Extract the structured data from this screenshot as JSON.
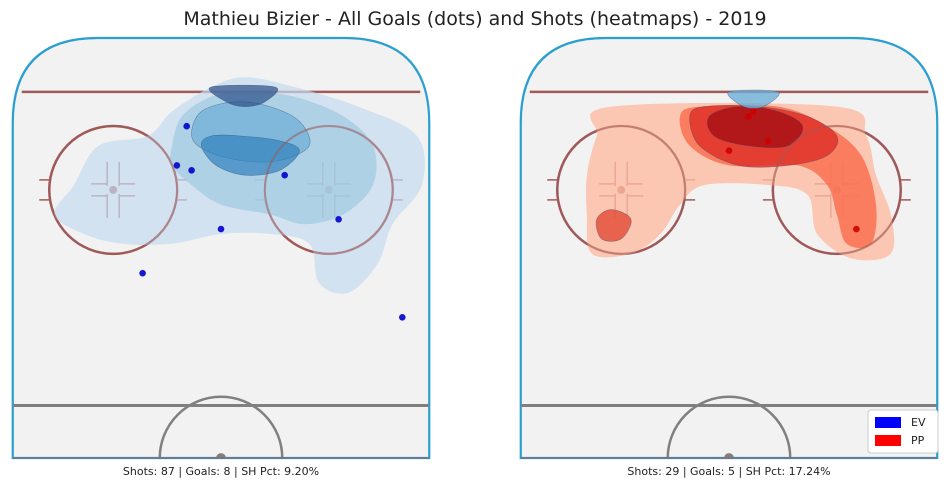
{
  "title": "Mathieu Bizier - All Goals (dots) and Shots (heatmaps) - 2019",
  "colors": {
    "ev": "#0000ff",
    "pp": "#ff0000",
    "rink_border": "#2a9fd0",
    "ice": "#f2f2f2",
    "red_line": "#a05a5a",
    "grey_line": "#808080"
  },
  "legend": {
    "placement": "lower-right",
    "items": [
      {
        "label": "EV",
        "color": "#0000ff"
      },
      {
        "label": "PP",
        "color": "#ff0000"
      }
    ]
  },
  "chart_data": [
    {
      "type": "scatter",
      "strength": "EV",
      "caption": "Shots: 87 | Goals: 8 | SH Pct: 9.20%",
      "goals": [
        {
          "x": -7,
          "y": 82
        },
        {
          "x": -9,
          "y": 74
        },
        {
          "x": -6,
          "y": 73
        },
        {
          "x": 13,
          "y": 72
        },
        {
          "x": 0,
          "y": 61
        },
        {
          "x": 24,
          "y": 63
        },
        {
          "x": -16,
          "y": 52
        },
        {
          "x": 37,
          "y": 43
        }
      ],
      "heatmap_levels": [
        {
          "level": 1,
          "points": [
            [
              -30,
              70
            ],
            [
              -25,
              78
            ],
            [
              -15,
              80
            ],
            [
              -10,
              85
            ],
            [
              -2,
              90
            ],
            [
              5,
              92
            ],
            [
              15,
              90
            ],
            [
              28,
              86
            ],
            [
              40,
              80
            ],
            [
              41,
              70
            ],
            [
              35,
              62
            ],
            [
              32,
              54
            ],
            [
              26,
              48
            ],
            [
              20,
              50
            ],
            [
              18,
              58
            ],
            [
              10,
              60
            ],
            [
              0,
              60
            ],
            [
              -10,
              58
            ],
            [
              -20,
              58
            ],
            [
              -28,
              60
            ],
            [
              -34,
              64
            ]
          ]
        },
        {
          "level": 2,
          "points": [
            [
              -10,
              78
            ],
            [
              -8,
              84
            ],
            [
              -2,
              88
            ],
            [
              5,
              89
            ],
            [
              15,
              88
            ],
            [
              25,
              84
            ],
            [
              31,
              78
            ],
            [
              31,
              70
            ],
            [
              25,
              64
            ],
            [
              17,
              62
            ],
            [
              10,
              64
            ],
            [
              0,
              66
            ],
            [
              -6,
              70
            ],
            [
              -10,
              74
            ]
          ]
        },
        {
          "level": 3,
          "points": [
            [
              -6,
              80
            ],
            [
              -4,
              85
            ],
            [
              3,
              87
            ],
            [
              10,
              86
            ],
            [
              16,
              83
            ],
            [
              18,
              78
            ],
            [
              12,
              75
            ],
            [
              4,
              75
            ],
            [
              -3,
              77
            ]
          ]
        },
        {
          "level": 4,
          "points": [
            [
              -4,
              78
            ],
            [
              -1,
              74
            ],
            [
              5,
              72
            ],
            [
              12,
              73
            ],
            [
              16,
              77
            ],
            [
              12,
              79
            ],
            [
              4,
              80
            ],
            [
              -2,
              80
            ]
          ]
        },
        {
          "level": 5,
          "points": [
            [
              -2,
              90
            ],
            [
              1,
              87
            ],
            [
              5,
              86
            ],
            [
              9,
              87
            ],
            [
              11,
              90
            ]
          ]
        }
      ]
    },
    {
      "type": "scatter",
      "strength": "PP",
      "caption": "Shots: 29 | Goals: 5 | SH Pct: 17.24%",
      "goals": [
        {
          "x": 4,
          "y": 84
        },
        {
          "x": 5,
          "y": 85
        },
        {
          "x": 8,
          "y": 79
        },
        {
          "x": 0,
          "y": 77
        },
        {
          "x": 26,
          "y": 61
        }
      ],
      "heatmap_levels": [
        {
          "level": 1,
          "points": [
            [
              -24,
              86
            ],
            [
              22,
              86
            ],
            [
              28,
              80
            ],
            [
              30,
              72
            ],
            [
              33,
              64
            ],
            [
              33,
              56
            ],
            [
              25,
              55
            ],
            [
              18,
              60
            ],
            [
              16,
              68
            ],
            [
              8,
              70
            ],
            [
              -5,
              70
            ],
            [
              -10,
              66
            ],
            [
              -14,
              60
            ],
            [
              -20,
              56
            ],
            [
              -28,
              56
            ],
            [
              -29,
              64
            ],
            [
              -29,
              72
            ],
            [
              -27,
              80
            ]
          ]
        },
        {
          "level": 2,
          "points": [
            [
              -10,
              84
            ],
            [
              -6,
              86
            ],
            [
              10,
              86
            ],
            [
              20,
              82
            ],
            [
              27,
              76
            ],
            [
              30,
              66
            ],
            [
              29,
              58
            ],
            [
              24,
              58
            ],
            [
              22,
              64
            ],
            [
              20,
              70
            ],
            [
              14,
              74
            ],
            [
              0,
              74
            ],
            [
              -8,
              78
            ]
          ]
        },
        {
          "level": 3,
          "points": [
            [
              -8,
              84
            ],
            [
              -5,
              86
            ],
            [
              6,
              86
            ],
            [
              16,
              84
            ],
            [
              22,
              80
            ],
            [
              20,
              76
            ],
            [
              12,
              74
            ],
            [
              2,
              74
            ],
            [
              -6,
              78
            ]
          ]
        },
        {
          "level": 4,
          "points": [
            [
              -4,
              84
            ],
            [
              2,
              86
            ],
            [
              10,
              85
            ],
            [
              15,
              82
            ],
            [
              12,
              78
            ],
            [
              4,
              78
            ],
            [
              -3,
              80
            ]
          ]
        },
        {
          "level": 5,
          "points": [
            [
              0,
              89
            ],
            [
              3,
              86
            ],
            [
              7,
              86
            ],
            [
              10,
              89
            ]
          ]
        },
        {
          "level": 6,
          "points": [
            [
              -27,
              63
            ],
            [
              -24,
              65
            ],
            [
              -20,
              63
            ],
            [
              -22,
              59
            ],
            [
              -26,
              59
            ]
          ]
        }
      ]
    }
  ]
}
